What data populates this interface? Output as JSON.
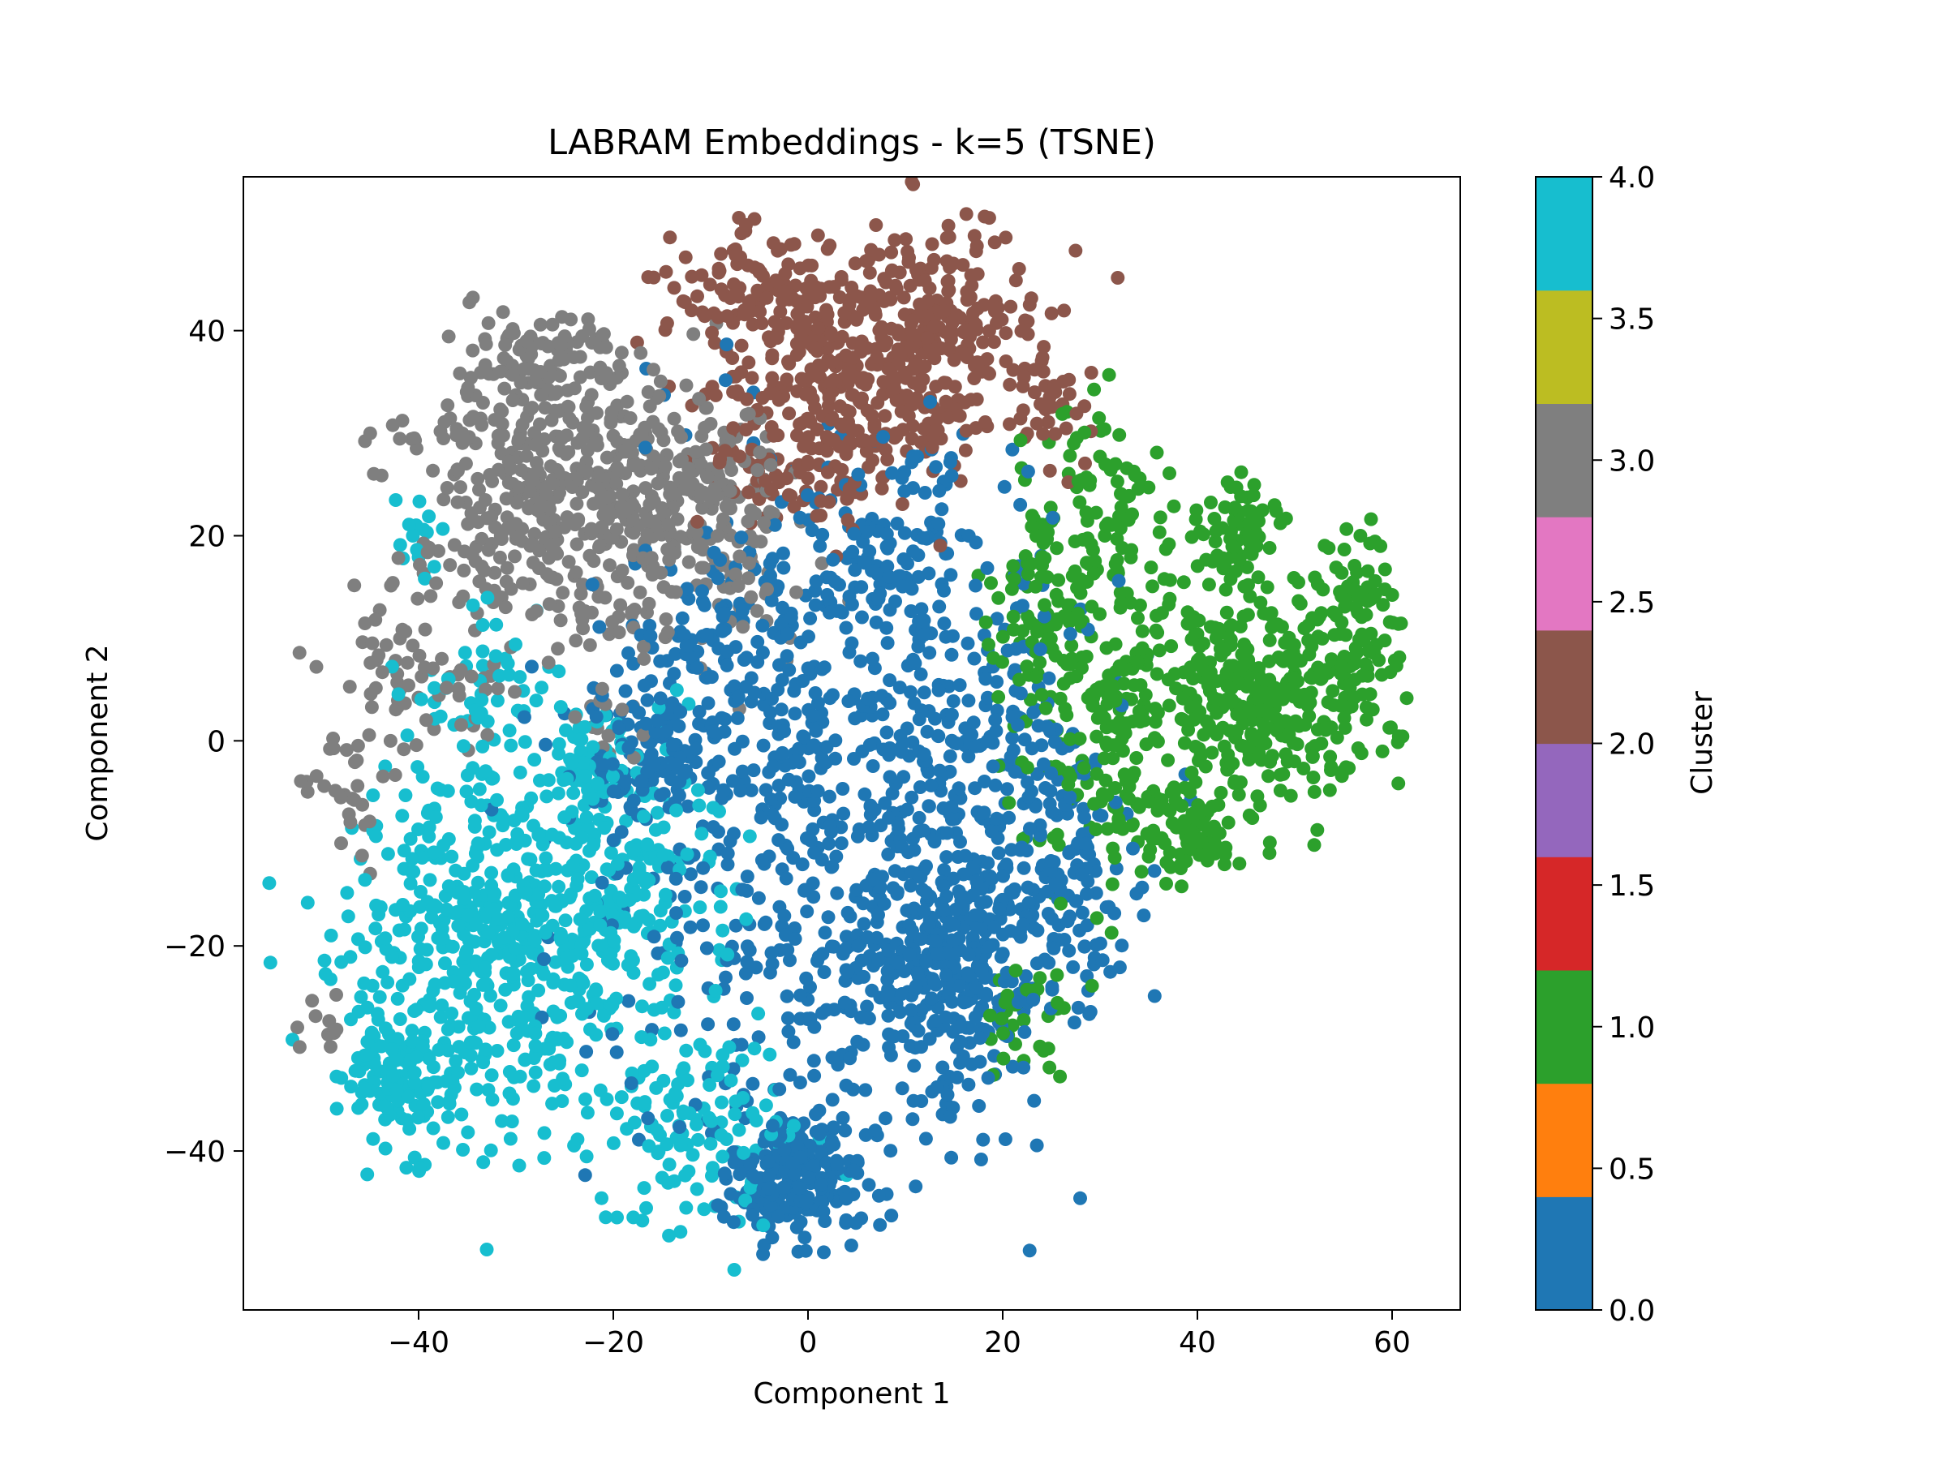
{
  "chart_data": {
    "type": "scatter",
    "title": "LABRAM Embeddings - k=5 (TSNE)",
    "xlabel": "Component 1",
    "ylabel": "Component 2",
    "xlim": [
      -58,
      67
    ],
    "ylim": [
      -55.5,
      55
    ],
    "xticks": [
      -40,
      -20,
      0,
      20,
      40,
      60
    ],
    "xtick_labels": [
      "−40",
      "−20",
      "0",
      "20",
      "40",
      "60"
    ],
    "yticks": [
      -40,
      -20,
      0,
      20,
      40
    ],
    "ytick_labels": [
      "−40",
      "−20",
      "0",
      "20",
      "40"
    ],
    "grid": false,
    "legend": "none",
    "colorbar": {
      "label": "Cluster",
      "range": [
        0,
        4
      ],
      "ticks": [
        0.0,
        0.5,
        1.0,
        1.5,
        2.0,
        2.5,
        3.0,
        3.5,
        4.0
      ],
      "tick_labels": [
        "0.0",
        "0.5",
        "1.0",
        "1.5",
        "2.0",
        "2.5",
        "3.0",
        "3.5",
        "4.0"
      ],
      "colors": [
        "#1f77b4",
        "#ff7f0e",
        "#2ca02c",
        "#d62728",
        "#9467bd",
        "#8c564b",
        "#e377c2",
        "#7f7f7f",
        "#bcbd22",
        "#17becf"
      ]
    },
    "series": [
      {
        "cluster": 0,
        "color": "#1f77b4",
        "regions": [
          {
            "cx": 2,
            "cy": -8,
            "sx": 12,
            "sy": 16,
            "n": 700
          },
          {
            "cx": 15,
            "cy": -22,
            "sx": 5,
            "sy": 6,
            "n": 250
          },
          {
            "cx": -2,
            "cy": -42,
            "sx": 4,
            "sy": 3.5,
            "n": 220
          },
          {
            "cx": -15,
            "cy": -1,
            "sx": 3,
            "sy": 2.5,
            "n": 90
          },
          {
            "cx": 8,
            "cy": 18,
            "sx": 6,
            "sy": 5,
            "n": 120
          },
          {
            "cx": 20,
            "cy": -5,
            "sx": 6,
            "sy": 10,
            "n": 180
          },
          {
            "cx": 28,
            "cy": -15,
            "sx": 4,
            "sy": 5,
            "n": 60
          },
          {
            "cx": -10,
            "cy": 10,
            "sx": 5,
            "sy": 4,
            "n": 70
          }
        ]
      },
      {
        "cluster": 1,
        "color": "#2ca02c",
        "regions": [
          {
            "cx": 48,
            "cy": 5,
            "sx": 7,
            "sy": 5,
            "n": 380
          },
          {
            "cx": 32,
            "cy": 0,
            "sx": 5,
            "sy": 7,
            "n": 170
          },
          {
            "cx": 30,
            "cy": 22,
            "sx": 4,
            "sy": 5,
            "n": 110
          },
          {
            "cx": 44,
            "cy": 20,
            "sx": 2,
            "sy": 2.5,
            "n": 60
          },
          {
            "cx": 57,
            "cy": 15,
            "sx": 2.5,
            "sy": 3,
            "n": 60
          },
          {
            "cx": 40,
            "cy": -9,
            "sx": 3,
            "sy": 2.5,
            "n": 70
          },
          {
            "cx": 24,
            "cy": 12,
            "sx": 3,
            "sy": 4,
            "n": 70
          },
          {
            "cx": 22,
            "cy": -28,
            "sx": 2,
            "sy": 3,
            "n": 35
          }
        ]
      },
      {
        "cluster": 2,
        "color": "#8c564b",
        "regions": [
          {
            "cx": 4,
            "cy": 38,
            "sx": 8,
            "sy": 6,
            "n": 420
          },
          {
            "cx": 15,
            "cy": 40,
            "sx": 5,
            "sy": 5,
            "n": 130
          },
          {
            "cx": -8,
            "cy": 45,
            "sx": 3,
            "sy": 2.5,
            "n": 50
          },
          {
            "cx": 0,
            "cy": 26,
            "sx": 5,
            "sy": 3,
            "n": 80
          },
          {
            "cx": 25,
            "cy": 32,
            "sx": 3,
            "sy": 2.5,
            "n": 25
          }
        ]
      },
      {
        "cluster": 3,
        "color": "#7f7f7f",
        "regions": [
          {
            "cx": -25,
            "cy": 25,
            "sx": 8,
            "sy": 7,
            "n": 480
          },
          {
            "cx": -10,
            "cy": 22,
            "sx": 5,
            "sy": 6,
            "n": 160
          },
          {
            "cx": -28,
            "cy": 36,
            "sx": 4,
            "sy": 3,
            "n": 70
          },
          {
            "cx": -40,
            "cy": 6,
            "sx": 5,
            "sy": 4,
            "n": 70
          },
          {
            "cx": -48,
            "cy": -5,
            "sx": 2,
            "sy": 3,
            "n": 25
          },
          {
            "cx": -50,
            "cy": -28,
            "sx": 1.5,
            "sy": 1.5,
            "n": 10
          },
          {
            "cx": -20,
            "cy": 2,
            "sx": 2,
            "sy": 2,
            "n": 15
          }
        ]
      },
      {
        "cluster": 4,
        "color": "#17becf",
        "regions": [
          {
            "cx": -32,
            "cy": -20,
            "sx": 8,
            "sy": 9,
            "n": 520
          },
          {
            "cx": -42,
            "cy": -33,
            "sx": 3.5,
            "sy": 3,
            "n": 130
          },
          {
            "cx": -18,
            "cy": -15,
            "sx": 5,
            "sy": 7,
            "n": 160
          },
          {
            "cx": -12,
            "cy": -38,
            "sx": 5,
            "sy": 5,
            "n": 120
          },
          {
            "cx": -22,
            "cy": -3,
            "sx": 3,
            "sy": 2.5,
            "n": 60
          },
          {
            "cx": -32,
            "cy": 5,
            "sx": 4,
            "sy": 3,
            "n": 50
          },
          {
            "cx": -40,
            "cy": 20,
            "sx": 1.5,
            "sy": 2,
            "n": 15
          }
        ]
      }
    ]
  }
}
